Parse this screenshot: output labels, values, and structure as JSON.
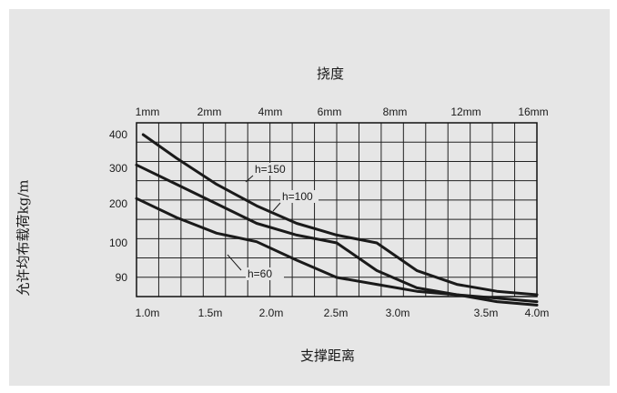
{
  "chart_data": {
    "type": "line",
    "title": "挠度",
    "xlabel": "支撑距离",
    "ylabel": "允许均布载荷kg/m",
    "top_axis": {
      "label": "挠度",
      "ticks": [
        "1mm",
        "2mm",
        "4mm",
        "6mm",
        "8mm",
        "12mm",
        "16mm"
      ]
    },
    "x_ticks": [
      "1.0m",
      "1.5m",
      "2.0m",
      "2.5m",
      "3.0m",
      "3.5m",
      "4.0m"
    ],
    "y_ticks": [
      "400",
      "300",
      "200",
      "100",
      "90"
    ],
    "xlim": [
      1.0,
      4.0
    ],
    "grid": true,
    "series": [
      {
        "name": "h=150",
        "x": [
          1.05,
          1.3,
          1.6,
          1.9,
          2.2,
          2.5,
          2.8,
          3.1,
          3.4,
          3.7,
          4.0
        ],
        "y": [
          400,
          330,
          255,
          195,
          150,
          120,
          100,
          92,
          88,
          86,
          85
        ]
      },
      {
        "name": "h=100",
        "x": [
          1.0,
          1.3,
          1.6,
          1.9,
          2.2,
          2.5,
          2.8,
          3.1,
          3.4,
          3.7,
          4.0
        ],
        "y": [
          310,
          255,
          200,
          150,
          120,
          100,
          92,
          87,
          85,
          83,
          82
        ]
      },
      {
        "name": "h=60",
        "x": [
          1.0,
          1.3,
          1.6,
          1.9,
          2.2,
          2.5,
          2.8,
          3.1,
          3.4,
          3.7,
          4.0
        ],
        "y": [
          215,
          165,
          125,
          103,
          95,
          90,
          88,
          86,
          85,
          84,
          83
        ]
      }
    ]
  }
}
